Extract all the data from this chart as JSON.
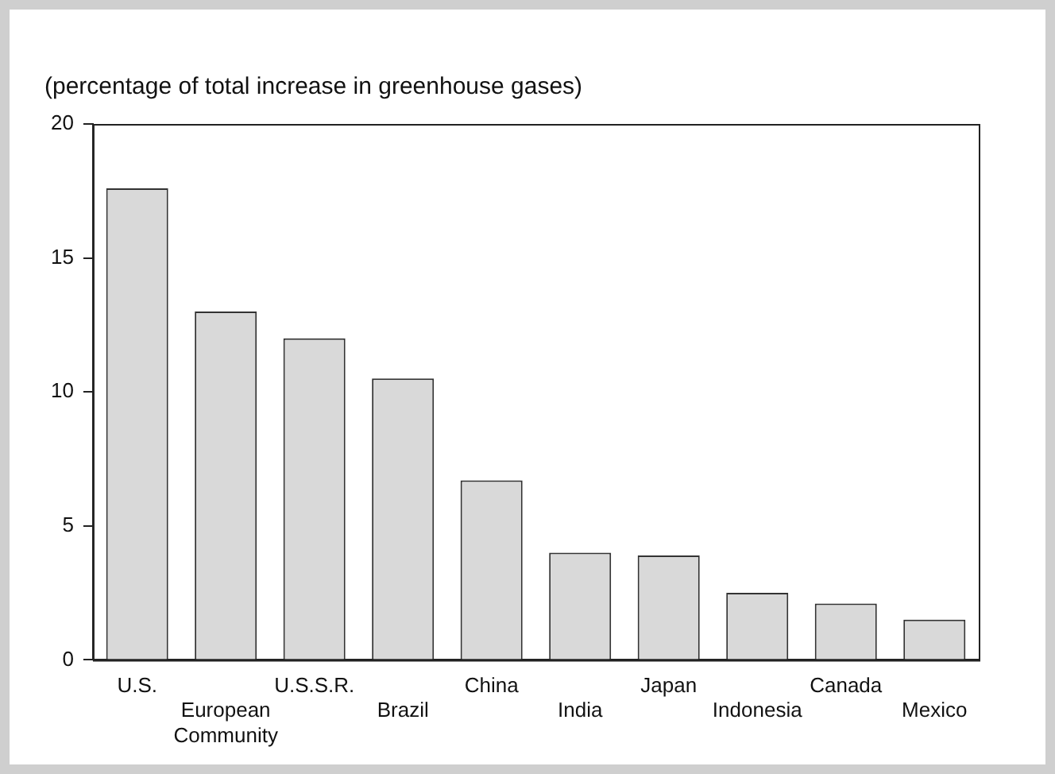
{
  "chart_data": {
    "type": "bar",
    "ylabel": "(percentage of total increase in greenhouse gases)",
    "categories": [
      "U.S.",
      "European Community",
      "U.S.S.R.",
      "Brazil",
      "China",
      "India",
      "Japan",
      "Indonesia",
      "Canada",
      "Mexico"
    ],
    "values": [
      17.6,
      13.0,
      12.0,
      10.5,
      6.7,
      4.0,
      3.9,
      2.5,
      2.1,
      1.5
    ],
    "color": "#d9d9d9",
    "ylim": [
      0,
      20
    ],
    "yticks": [
      0,
      5,
      10,
      15,
      20
    ],
    "grid": false
  }
}
